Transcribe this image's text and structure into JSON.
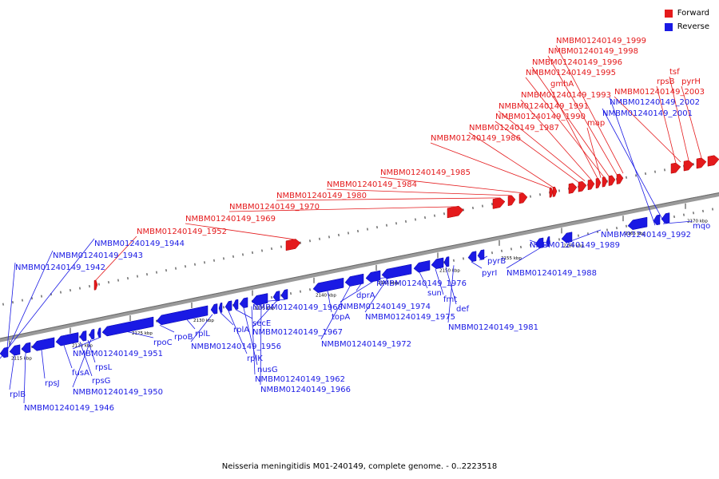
{
  "legend": {
    "forward": "Forward",
    "reverse": "Reverse"
  },
  "colors": {
    "forward": "#e41a1c",
    "reverse": "#1a1ae4",
    "backbone": "#8a8a8a"
  },
  "caption": "Neisseria meningitidis M01-240149, complete genome. - 0..2223518",
  "scale": {
    "unit": "kbp",
    "ticks": [
      2115,
      2120,
      2125,
      2130,
      2135,
      2140,
      2145,
      2150,
      2155,
      2160,
      2165,
      2170
    ]
  },
  "forward_labels": [
    "NMBM01240149_1999",
    "NMBM01240149_1998",
    "NMBM01240149_1996",
    "NMBM01240149_1995",
    "gmhA",
    "NMBM01240149_1993",
    "NMBM01240149_1991",
    "NMBM01240149_1990",
    "map",
    "NMBM01240149_1987",
    "NMBM01240149_1986",
    "tsf",
    "rpsB",
    "pyrH",
    "NMBM01240149_2003",
    "NMBM01240149_1985",
    "NMBM01240149_1984",
    "NMBM01240149_1980",
    "NMBM01240149_1970",
    "NMBM01240149_1969",
    "NMBM01240149_1952"
  ],
  "reverse_labels": [
    "NMBM01240149_2002",
    "NMBM01240149_2001",
    "NMBM01240149_1944",
    "NMBM01240149_1943",
    "NMBM01240149_1942",
    "rplB",
    "NMBM01240149_1946",
    "rpsJ",
    "fusA",
    "rpsG",
    "rpsL",
    "NMBM01240149_1950",
    "NMBM01240149_1951",
    "rpoC",
    "rpoB",
    "rplL",
    "NMBM01240149_1956",
    "rplA",
    "rplK",
    "secE",
    "nusG",
    "NMBM01240149_1962",
    "NMBM01240149_1966",
    "NMBM01240149_1967",
    "NMBM01240149_1968",
    "topA",
    "NMBM01240149_1972",
    "dprA",
    "NMBM01240149_1974",
    "NMBM01240149_1975",
    "NMBM01240149_1976",
    "sun",
    "fmt",
    "def",
    "NMBM01240149_1981",
    "pyrI",
    "pyrB",
    "NMBM01240149_1988",
    "NMBM01240149_1989",
    "NMBM01240149_1992",
    "mqo"
  ]
}
